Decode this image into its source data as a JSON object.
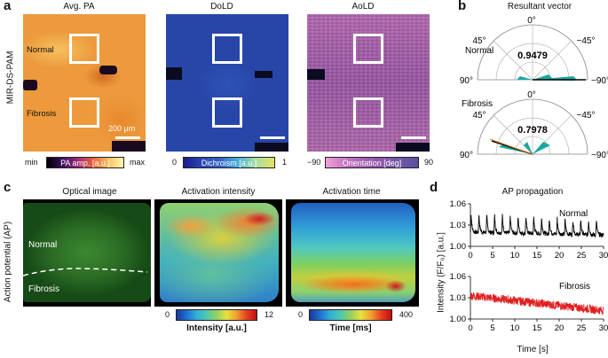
{
  "panel_a": {
    "label": "a",
    "row_label": "MIR-DS-PAM",
    "titles": [
      "Avg. PA",
      "DoLD",
      "AoLD"
    ],
    "region_normal": "Normal",
    "region_fibrosis": "Fibrosis",
    "scalebar": "200 μm",
    "colorbars": [
      {
        "name": "PA amp. [a.u.]",
        "min": "min",
        "max": "max"
      },
      {
        "name": "Dichroism [a.u.]",
        "min": "0",
        "max": "1"
      },
      {
        "name": "Orientation [deg]",
        "min": "−90",
        "max": "90"
      }
    ]
  },
  "panel_b": {
    "label": "b",
    "title": "Resultant vector",
    "plots": [
      {
        "name": "Normal",
        "value": "0.9479"
      },
      {
        "name": "Fibrosis",
        "value": "0.7978"
      }
    ],
    "angles": {
      "top": "0°",
      "left45": "45°",
      "right45": "−45°",
      "left90": "90°",
      "right90": "−90°"
    }
  },
  "panel_c": {
    "label": "c",
    "row_label": "Action potential (AP)",
    "titles": [
      "Optical image",
      "Activation intensity",
      "Activation time"
    ],
    "region_normal": "Normal",
    "region_fibrosis": "Fibrosis",
    "colorbars": [
      {
        "name": "Intensity [a.u.]",
        "min": "0",
        "max": "12"
      },
      {
        "name": "Time [ms]",
        "min": "0",
        "max": "400"
      }
    ]
  },
  "panel_d": {
    "label": "d",
    "title": "AP propagation",
    "ylabel": "Intensity (F/F₀) [a.u.]",
    "xlabel": "Time [s]",
    "chart_data": [
      {
        "type": "line",
        "name": "Normal",
        "color": "#000000",
        "xlim": [
          0,
          30
        ],
        "ylim": [
          1.0,
          1.06
        ],
        "yticks": [
          "1.00",
          "1.03",
          "1.06"
        ],
        "xticks": [
          "0",
          "5",
          "10",
          "15",
          "20",
          "25",
          "30"
        ],
        "baseline": 1.02,
        "peaks": 1.047,
        "peak_count": 17
      },
      {
        "type": "line",
        "name": "Fibrosis",
        "color": "#e02020",
        "xlim": [
          0,
          30
        ],
        "ylim": [
          1.0,
          1.06
        ],
        "yticks": [
          "1.00",
          "1.03",
          "1.06"
        ],
        "xticks": [
          "0",
          "5",
          "10",
          "15",
          "20",
          "25",
          "30"
        ],
        "start": 1.033,
        "end": 1.012
      }
    ]
  }
}
